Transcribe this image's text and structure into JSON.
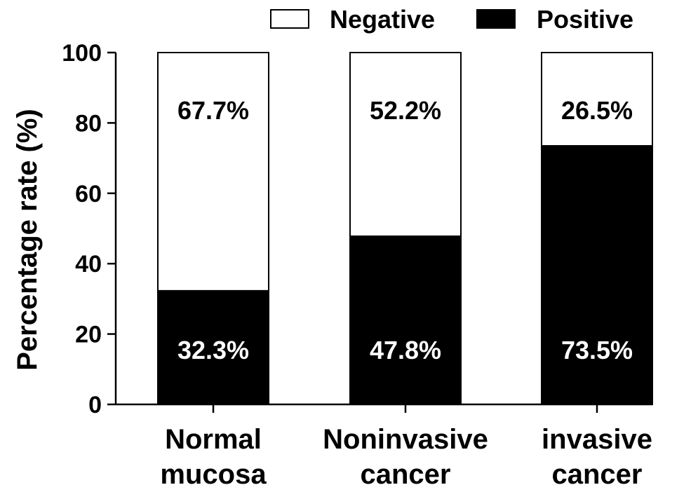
{
  "chart_data": {
    "type": "bar",
    "stacked": true,
    "ylabel": "Percentage rate (%)",
    "ylim": [
      0,
      100
    ],
    "yticks": [
      0,
      20,
      40,
      60,
      80,
      100
    ],
    "categories": [
      [
        "Normal",
        "mucosa"
      ],
      [
        "Noninvasive",
        "cancer"
      ],
      [
        "invasive",
        "cancer"
      ]
    ],
    "series": [
      {
        "name": "Positive",
        "color": "#000000",
        "values": [
          32.3,
          47.8,
          73.5
        ],
        "labels": [
          "32.3%",
          "47.8%",
          "73.5%"
        ],
        "label_color": "#ffffff"
      },
      {
        "name": "Negative",
        "color": "#ffffff",
        "values": [
          67.7,
          52.2,
          26.5
        ],
        "labels": [
          "67.7%",
          "52.2%",
          "26.5%"
        ],
        "label_color": "#000000"
      }
    ],
    "legend": {
      "position": "top-right",
      "order": [
        "Negative",
        "Positive"
      ]
    },
    "grid": false
  }
}
